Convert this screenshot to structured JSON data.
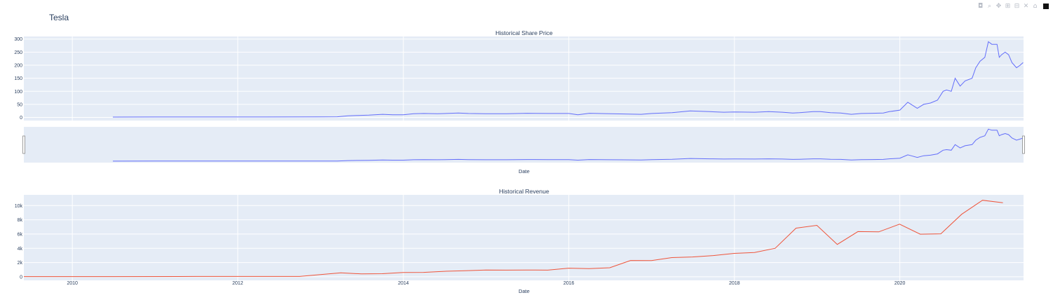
{
  "page_title": "Tesla",
  "modebar": {
    "icons": [
      "camera-icon",
      "zoom-icon",
      "pan-icon",
      "zoom-in-icon",
      "zoom-out-icon",
      "autoscale-icon",
      "reset-axes-icon",
      "plotly-logo-icon"
    ],
    "glyphs": [
      "◘",
      "⌕",
      "✥",
      "⊞",
      "⊟",
      "✕",
      "⌂",
      ""
    ]
  },
  "colors": {
    "price_line": "#636efa",
    "revenue_line": "#ef553b",
    "plot_bg": "#e5ecf6",
    "grid": "#ffffff",
    "text": "#2a3f5f"
  },
  "chart_data": [
    {
      "type": "line",
      "title": "Historical Share Price",
      "xlabel": "Date",
      "ylabel": "",
      "xlim": [
        "2009-06-01",
        "2021-06-30"
      ],
      "ylim": [
        -12,
        310
      ],
      "yticks": [
        0,
        50,
        100,
        150,
        200,
        250,
        300
      ],
      "grid": true,
      "has_range_slider": true,
      "series": [
        {
          "x": [
            "2010-06-29",
            "2011-01-01",
            "2012-01-01",
            "2013-01-01",
            "2013-03-15",
            "2013-05-01",
            "2013-06-15",
            "2013-08-01",
            "2013-10-01",
            "2013-11-15",
            "2014-01-01",
            "2014-02-15",
            "2014-04-01",
            "2014-06-01",
            "2014-09-01",
            "2014-10-15",
            "2015-01-01",
            "2015-04-01",
            "2015-07-01",
            "2015-10-01",
            "2016-01-01",
            "2016-02-10",
            "2016-04-01",
            "2016-07-01",
            "2016-11-15",
            "2017-01-01",
            "2017-04-01",
            "2017-06-20",
            "2017-09-15",
            "2017-11-15",
            "2018-01-01",
            "2018-04-01",
            "2018-06-01",
            "2018-08-01",
            "2018-09-15",
            "2018-10-15",
            "2018-12-15",
            "2019-01-15",
            "2019-03-01",
            "2019-04-15",
            "2019-06-01",
            "2019-07-15",
            "2019-09-01",
            "2019-10-20",
            "2019-11-15",
            "2020-01-01",
            "2020-02-05",
            "2020-02-20",
            "2020-03-18",
            "2020-04-15",
            "2020-05-15",
            "2020-06-15",
            "2020-07-10",
            "2020-07-25",
            "2020-08-15",
            "2020-09-01",
            "2020-09-23",
            "2020-10-15",
            "2020-11-15",
            "2020-12-01",
            "2020-12-20",
            "2021-01-10",
            "2021-01-26",
            "2021-02-10",
            "2021-03-05",
            "2021-03-15",
            "2021-03-25",
            "2021-04-10",
            "2021-04-25",
            "2021-05-10",
            "2021-05-20",
            "2021-05-30",
            "2021-06-15",
            "2021-06-28"
          ],
          "y": [
            1.5,
            1.7,
            1.8,
            2.3,
            2.5,
            6,
            7.5,
            9,
            12,
            10,
            10,
            14,
            15,
            14,
            17,
            15,
            14,
            14,
            16,
            15,
            15,
            10,
            16,
            14,
            12,
            15,
            18,
            25,
            22,
            20,
            21,
            20,
            22,
            20,
            17,
            18,
            22,
            22,
            18,
            17,
            12,
            15,
            16,
            17,
            22,
            28,
            58,
            50,
            35,
            50,
            55,
            66,
            100,
            105,
            100,
            150,
            120,
            140,
            150,
            190,
            215,
            230,
            290,
            280,
            280,
            230,
            240,
            250,
            240,
            210,
            200,
            190,
            200,
            210
          ]
        }
      ]
    },
    {
      "type": "line",
      "title": "Historical Revenue",
      "xlabel": "Date",
      "ylabel": "",
      "xlim": [
        "2009-06-01",
        "2021-06-30"
      ],
      "ylim": [
        -500,
        11500
      ],
      "yticks": [
        0,
        2000,
        4000,
        6000,
        8000,
        10000
      ],
      "ytick_labels": [
        "0",
        "2k",
        "4k",
        "6k",
        "8k",
        "10k"
      ],
      "xticks": [
        "2010-01-01",
        "2012-01-01",
        "2014-01-01",
        "2016-01-01",
        "2018-01-01",
        "2020-01-01"
      ],
      "xtick_labels": [
        "2010",
        "2012",
        "2014",
        "2016",
        "2018",
        "2020"
      ],
      "grid": true,
      "series": [
        {
          "x": [
            "2009-06-01",
            "2010-06-30",
            "2011-06-30",
            "2012-09-30",
            "2012-12-31",
            "2013-03-31",
            "2013-06-30",
            "2013-09-30",
            "2013-12-31",
            "2014-03-31",
            "2014-06-30",
            "2014-09-30",
            "2014-12-31",
            "2015-03-31",
            "2015-06-30",
            "2015-09-30",
            "2015-12-31",
            "2016-03-31",
            "2016-06-30",
            "2016-09-30",
            "2016-12-31",
            "2017-03-31",
            "2017-06-30",
            "2017-09-30",
            "2017-12-31",
            "2018-03-31",
            "2018-06-30",
            "2018-09-30",
            "2018-12-31",
            "2019-03-31",
            "2019-06-30",
            "2019-09-30",
            "2019-12-31",
            "2020-03-31",
            "2020-06-30",
            "2020-09-30",
            "2020-12-31",
            "2021-03-31"
          ],
          "y": [
            30,
            30,
            50,
            50,
            306,
            562,
            405,
            431,
            615,
            621,
            769,
            852,
            957,
            940,
            955,
            937,
            1214,
            1147,
            1270,
            2298,
            2285,
            2696,
            2790,
            2985,
            3288,
            3409,
            4002,
            6824,
            7226,
            4541,
            6350,
            6303,
            7384,
            5985,
            6036,
            8771,
            10744,
            10389
          ]
        }
      ]
    }
  ]
}
